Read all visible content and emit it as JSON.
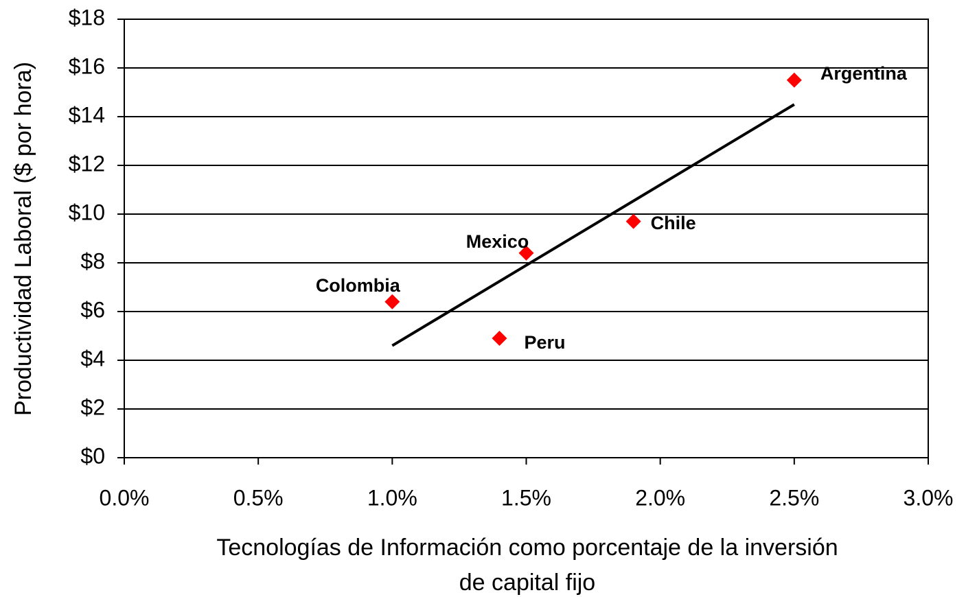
{
  "chart_data": {
    "type": "scatter",
    "ylabel": "Productividad Laboral ($ por hora)",
    "xlabel": [
      "Tecnologías de Información como porcentaje de la inversión",
      "de capital fijo"
    ],
    "series": [
      {
        "color": "#ff0000",
        "categories": [
          "Colombia",
          "Peru",
          "Mexico",
          "Chile",
          "Argentina"
        ],
        "x": [
          1.0,
          1.4,
          1.5,
          1.9,
          2.5
        ],
        "values": [
          6.4,
          4.9,
          8.4,
          9.7,
          15.5
        ]
      }
    ],
    "trendline": {
      "color": "#000000",
      "x": [
        1.0,
        2.5
      ],
      "values": [
        4.6,
        14.5
      ]
    },
    "xlim": [
      0,
      3.0
    ],
    "xticks": [
      {
        "value": 0,
        "label": "0.0%"
      },
      {
        "value": 0.5,
        "label": "0.5%"
      },
      {
        "value": 1.0,
        "label": "1.0%"
      },
      {
        "value": 1.5,
        "label": "1.5%"
      },
      {
        "value": 2.0,
        "label": "2.0%"
      },
      {
        "value": 2.5,
        "label": "2.5%"
      },
      {
        "value": 3.0,
        "label": "3.0%"
      }
    ],
    "ylim": [
      0,
      18
    ],
    "yticks": [
      {
        "value": 0,
        "label": "$0"
      },
      {
        "value": 2,
        "label": "$2"
      },
      {
        "value": 4,
        "label": "$4"
      },
      {
        "value": 6,
        "label": "$6"
      },
      {
        "value": 8,
        "label": "$8"
      },
      {
        "value": 10,
        "label": "$10"
      },
      {
        "value": 12,
        "label": "$12"
      },
      {
        "value": 14,
        "label": "$14"
      },
      {
        "value": 16,
        "label": "$16"
      },
      {
        "value": 18,
        "label": "$18"
      }
    ],
    "grid": true
  }
}
